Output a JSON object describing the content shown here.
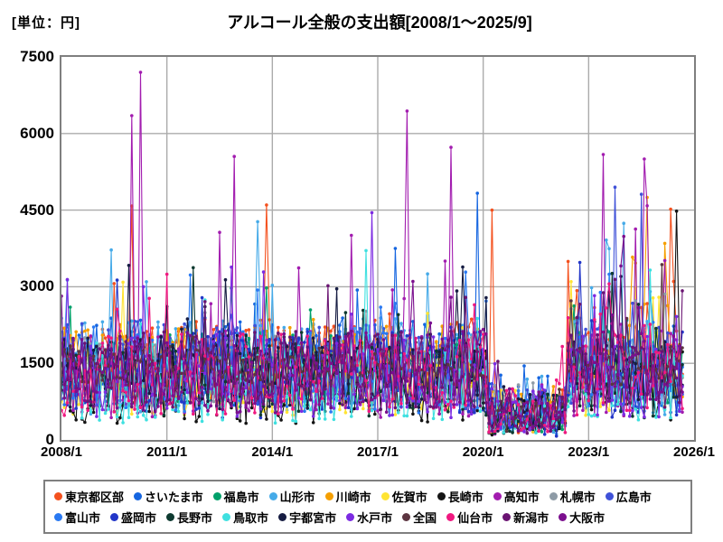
{
  "header": {
    "unit_label": "[単位：円]"
  },
  "chart_data": {
    "type": "line",
    "title": "アルコール全般の支出額[2008/1～2025/9]",
    "unit_label": "[単位：円]",
    "xlabel": "",
    "ylabel": "円",
    "x_start": "2008/1",
    "x_axis_end": "2026/1",
    "data_end": "2025/9",
    "ylim": [
      0,
      7500
    ],
    "y_ticks": [
      0,
      1500,
      3000,
      4500,
      6000,
      7500
    ],
    "x_ticks": [
      "2008/1",
      "2011/1",
      "2014/1",
      "2017/1",
      "2020/1",
      "2023/1",
      "2026/1"
    ],
    "grid": true,
    "grid_color": "#ababab",
    "frame_color": "#7f7f7f",
    "legend_position": "bottom",
    "covid_dip": {
      "start_month": "2020/3",
      "end_month": "2022/5",
      "depth_base": 0.15,
      "depth_rand": 0.45
    },
    "typical_range": [
      500,
      3000
    ],
    "series": [
      {
        "name": "東京都区部",
        "color": "#f4511e",
        "seed": 101,
        "base": 1550,
        "amp": 1500,
        "spike_max": 2200,
        "post_spike_max": 2600
      },
      {
        "name": "さいたま市",
        "color": "#1565e0",
        "seed": 102,
        "base": 1400,
        "amp": 1800
      },
      {
        "name": "福島市",
        "color": "#00a06a",
        "seed": 103,
        "base": 1300,
        "amp": 1500
      },
      {
        "name": "山形市",
        "color": "#45aae8",
        "seed": 104,
        "base": 1350,
        "amp": 1900,
        "spike_max": 2100
      },
      {
        "name": "川崎市",
        "color": "#f59f00",
        "seed": 105,
        "base": 1450,
        "amp": 1500,
        "post_spike_max": 3000
      },
      {
        "name": "佐賀市",
        "color": "#ffe433",
        "seed": 106,
        "base": 1100,
        "amp": 1400
      },
      {
        "name": "長崎市",
        "color": "#141414",
        "seed": 107,
        "base": 1000,
        "amp": 1500,
        "post_spike_max": 2800
      },
      {
        "name": "高知市",
        "color": "#a21caf",
        "seed": 108,
        "base": 1200,
        "amp": 1700,
        "spike_prob": 0.07,
        "spike_max": 3400,
        "post_spike_max": 3600
      },
      {
        "name": "札幌市",
        "color": "#8e9ba6",
        "seed": 109,
        "base": 1300,
        "amp": 1400
      },
      {
        "name": "広島市",
        "color": "#3f51d8",
        "seed": 110,
        "base": 1350,
        "amp": 1700,
        "post_spike_max": 3000
      },
      {
        "name": "富山市",
        "color": "#2979f2",
        "seed": 111,
        "base": 1250,
        "amp": 1600
      },
      {
        "name": "盛岡市",
        "color": "#2236c8",
        "seed": 112,
        "base": 1200,
        "amp": 1700
      },
      {
        "name": "長野市",
        "color": "#0e3a30",
        "seed": 113,
        "base": 1100,
        "amp": 1500
      },
      {
        "name": "鳥取市",
        "color": "#3fe0e0",
        "seed": 114,
        "base": 1050,
        "amp": 1600,
        "spike_max": 2000
      },
      {
        "name": "宇都宮市",
        "color": "#161c42",
        "seed": 115,
        "base": 1250,
        "amp": 1500
      },
      {
        "name": "水戸市",
        "color": "#7c2be2",
        "seed": 116,
        "base": 1150,
        "amp": 1600
      },
      {
        "name": "全国",
        "color": "#5c3540",
        "seed": 117,
        "base": 1400,
        "amp": 800,
        "spike_prob": 0.02
      },
      {
        "name": "仙台市",
        "color": "#f01880",
        "seed": 118,
        "base": 1200,
        "amp": 1600
      },
      {
        "name": "新潟市",
        "color": "#6a1472",
        "seed": 119,
        "base": 1300,
        "amp": 1500
      },
      {
        "name": "大阪市",
        "color": "#7b0f8e",
        "seed": 120,
        "base": 1250,
        "amp": 1600
      }
    ],
    "notable_peaks": [
      {
        "series": "高知市",
        "month": "2010/1",
        "value": 6350
      },
      {
        "series": "高知市",
        "month": "2010/4",
        "value": 7200
      },
      {
        "series": "高知市",
        "month": "2012/12",
        "value": 5550
      },
      {
        "series": "高知市",
        "month": "2017/11",
        "value": 6440
      },
      {
        "series": "高知市",
        "month": "2019/2",
        "value": 5730
      },
      {
        "series": "高知市",
        "month": "2023/6",
        "value": 5590
      },
      {
        "series": "東京都区部",
        "month": "2010/1",
        "value": 4580
      },
      {
        "series": "東京都区部",
        "month": "2013/11",
        "value": 4600
      },
      {
        "series": "東京都区部",
        "month": "2020/4",
        "value": 4500
      },
      {
        "series": "東京都区部",
        "month": "2025/5",
        "value": 4520
      },
      {
        "series": "さいたま市",
        "month": "2019/11",
        "value": 4830
      },
      {
        "series": "広島市",
        "month": "2023/10",
        "value": 4950
      },
      {
        "series": "川崎市",
        "month": "2024/9",
        "value": 4750
      },
      {
        "series": "長崎市",
        "month": "2025/7",
        "value": 4480
      },
      {
        "series": "山形市",
        "month": "2009/6",
        "value": 3720
      },
      {
        "series": "水戸市",
        "month": "2016/11",
        "value": 4450
      }
    ]
  }
}
